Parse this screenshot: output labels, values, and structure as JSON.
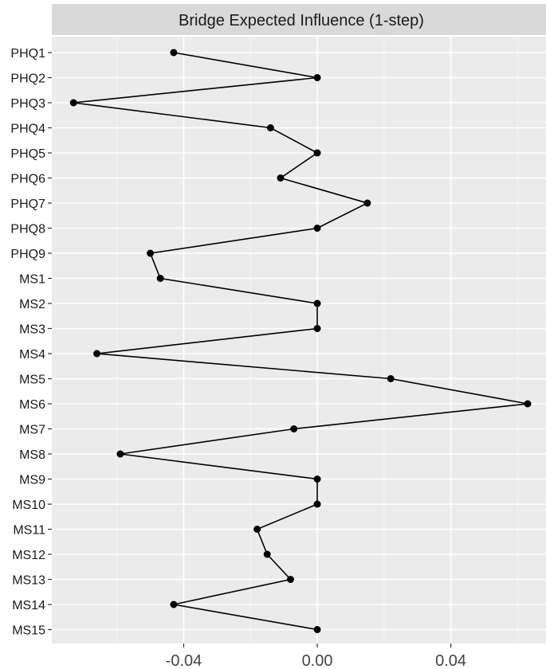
{
  "chart_data": {
    "type": "line",
    "title": "Bridge Expected Influence (1-step)",
    "xlabel": "",
    "ylabel": "",
    "xlim": [
      -0.0795,
      0.0685
    ],
    "x_ticks": [
      -0.04,
      0.0,
      0.04
    ],
    "x_tick_labels": [
      "-0.04",
      "0.00",
      "0.04"
    ],
    "grid": true,
    "categories": [
      "PHQ1",
      "PHQ2",
      "PHQ3",
      "PHQ4",
      "PHQ5",
      "PHQ6",
      "PHQ7",
      "PHQ8",
      "PHQ9",
      "MS1",
      "MS2",
      "MS3",
      "MS4",
      "MS5",
      "MS6",
      "MS7",
      "MS8",
      "MS9",
      "MS10",
      "MS11",
      "MS12",
      "MS13",
      "MS14",
      "MS15"
    ],
    "values": [
      -0.043,
      0.0,
      -0.073,
      -0.014,
      0.0,
      -0.011,
      0.015,
      0.0,
      -0.05,
      -0.047,
      0.0,
      0.0,
      -0.066,
      0.022,
      0.063,
      -0.007,
      -0.059,
      0.0,
      0.0,
      -0.018,
      -0.015,
      -0.008,
      -0.043,
      0.0
    ],
    "colors": {
      "panel": "#ebebeb",
      "strip": "#d9d9d9",
      "grid_major": "#ffffff",
      "series": "#000000"
    }
  }
}
